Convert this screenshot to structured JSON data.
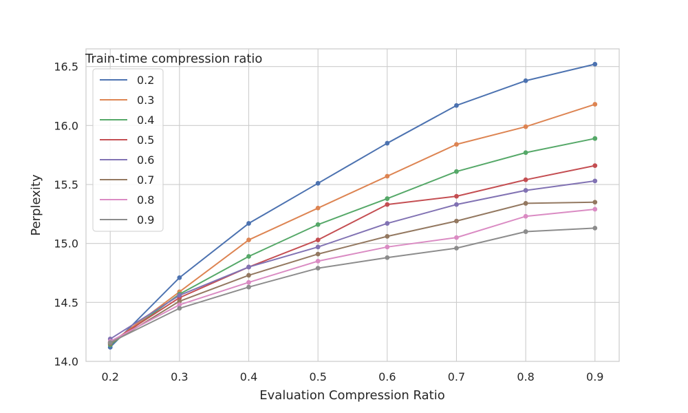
{
  "chart_data": {
    "type": "line",
    "title": "",
    "xlabel": "Evaluation Compression Ratio",
    "ylabel": "Perplexity",
    "x": [
      0.2,
      0.3,
      0.4,
      0.5,
      0.6,
      0.7,
      0.8,
      0.9
    ],
    "x_tick_labels": [
      "0.2",
      "0.3",
      "0.4",
      "0.5",
      "0.6",
      "0.7",
      "0.8",
      "0.9"
    ],
    "xlim": [
      0.165,
      0.935
    ],
    "ylim": [
      14.0,
      16.65
    ],
    "y_ticks": [
      14.0,
      14.5,
      15.0,
      15.5,
      16.0,
      16.5
    ],
    "y_tick_labels": [
      "14.0",
      "14.5",
      "15.0",
      "15.5",
      "16.0",
      "16.5"
    ],
    "grid": true,
    "legend": {
      "title": "Train-time compression ratio",
      "placement": "upper-left"
    },
    "series": [
      {
        "name": "0.2",
        "color": "#4c72b0",
        "values": [
          14.12,
          14.71,
          15.17,
          15.51,
          15.85,
          16.17,
          16.38,
          16.52
        ]
      },
      {
        "name": "0.3",
        "color": "#dd8452",
        "values": [
          14.15,
          14.59,
          15.03,
          15.3,
          15.57,
          15.84,
          15.99,
          16.18
        ]
      },
      {
        "name": "0.4",
        "color": "#55a868",
        "values": [
          14.14,
          14.57,
          14.89,
          15.16,
          15.38,
          15.61,
          15.77,
          15.89
        ]
      },
      {
        "name": "0.5",
        "color": "#c44e52",
        "values": [
          14.16,
          14.54,
          14.8,
          15.03,
          15.33,
          15.4,
          15.54,
          15.66
        ]
      },
      {
        "name": "0.6",
        "color": "#8172b3",
        "values": [
          14.19,
          14.56,
          14.8,
          14.97,
          15.17,
          15.33,
          15.45,
          15.53
        ]
      },
      {
        "name": "0.7",
        "color": "#937860",
        "values": [
          14.15,
          14.51,
          14.73,
          14.91,
          15.06,
          15.19,
          15.34,
          15.35
        ]
      },
      {
        "name": "0.8",
        "color": "#da8bc3",
        "values": [
          14.17,
          14.48,
          14.67,
          14.85,
          14.97,
          15.05,
          15.23,
          15.29
        ]
      },
      {
        "name": "0.9",
        "color": "#8c8c8c",
        "values": [
          14.16,
          14.45,
          14.63,
          14.79,
          14.88,
          14.96,
          15.1,
          15.13
        ]
      }
    ]
  }
}
